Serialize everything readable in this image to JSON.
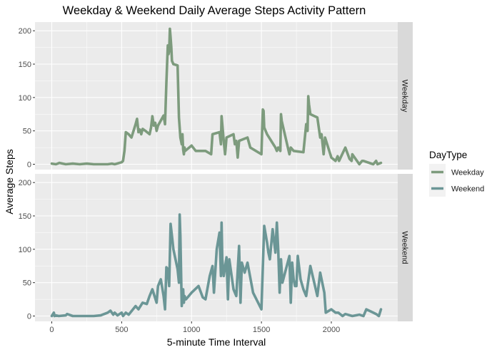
{
  "chart_data": {
    "type": "line",
    "title": "Weekday & Weekend Daily Average Steps Activity Pattern",
    "xlabel": "5-minute Time Interval",
    "ylabel": "Average Steps",
    "xlim": [
      -120,
      2475
    ],
    "ylim": [
      -8,
      213
    ],
    "x_ticks": [
      0,
      500,
      1000,
      1500,
      2000
    ],
    "y_ticks": [
      0,
      50,
      100,
      150,
      200
    ],
    "grid": true,
    "facet": "row",
    "legend": {
      "title": "DayType",
      "position": "right",
      "entries": [
        "Weekday",
        "Weekend"
      ]
    },
    "colors": {
      "Weekday": "#7d9b7d",
      "Weekend": "#6b9696",
      "panel_bg": "#ebebeb",
      "strip_bg": "#d9d9d9",
      "grid": "#ffffff"
    },
    "series": [
      {
        "name": "Weekday",
        "strip_label": "Weekday",
        "x": [
          0,
          30,
          55,
          100,
          150,
          200,
          250,
          300,
          350,
          400,
          430,
          450,
          500,
          510,
          520,
          530,
          550,
          570,
          600,
          610,
          620,
          630,
          640,
          650,
          670,
          700,
          710,
          720,
          730,
          740,
          750,
          760,
          800,
          810,
          820,
          830,
          835,
          840,
          845,
          850,
          855,
          860,
          870,
          900,
          910,
          920,
          930,
          935,
          940,
          945,
          950,
          955,
          1000,
          1030,
          1100,
          1140,
          1150,
          1200,
          1210,
          1215,
          1220,
          1230,
          1240,
          1250,
          1300,
          1310,
          1320,
          1330,
          1340,
          1400,
          1420,
          1500,
          1510,
          1515,
          1520,
          1540,
          1600,
          1610,
          1620,
          1635,
          1640,
          1645,
          1700,
          1710,
          1730,
          1800,
          1820,
          1830,
          1835,
          1840,
          1850,
          1900,
          1920,
          1930,
          1945,
          1955,
          2000,
          2030,
          2045,
          2055,
          2100,
          2130,
          2145,
          2150,
          2200,
          2220,
          2230,
          2300,
          2320,
          2330,
          2355
        ],
        "y": [
          1,
          0,
          2,
          0,
          1,
          0,
          1,
          0,
          0,
          0,
          1,
          0,
          3,
          5,
          20,
          48,
          45,
          40,
          60,
          68,
          48,
          52,
          45,
          53,
          50,
          45,
          55,
          72,
          58,
          62,
          50,
          58,
          73,
          60,
          122,
          178,
          165,
          170,
          203,
          190,
          175,
          155,
          150,
          148,
          70,
          40,
          30,
          45,
          22,
          15,
          25,
          20,
          28,
          20,
          20,
          15,
          45,
          48,
          30,
          72,
          60,
          35,
          15,
          40,
          45,
          30,
          35,
          10,
          35,
          40,
          25,
          15,
          82,
          80,
          55,
          45,
          25,
          20,
          25,
          20,
          75,
          65,
          15,
          25,
          20,
          18,
          60,
          50,
          102,
          90,
          75,
          70,
          40,
          45,
          15,
          40,
          10,
          5,
          12,
          5,
          25,
          8,
          5,
          15,
          0,
          5,
          5,
          0,
          5,
          0,
          2
        ]
      },
      {
        "name": "Weekend",
        "strip_label": "Weekend",
        "x": [
          0,
          15,
          20,
          30,
          50,
          100,
          110,
          150,
          200,
          250,
          300,
          350,
          400,
          420,
          440,
          450,
          470,
          500,
          510,
          530,
          550,
          600,
          620,
          650,
          680,
          700,
          720,
          750,
          760,
          780,
          800,
          810,
          820,
          830,
          840,
          850,
          860,
          870,
          900,
          910,
          915,
          920,
          930,
          940,
          945,
          950,
          960,
          1000,
          1050,
          1080,
          1100,
          1130,
          1150,
          1160,
          1180,
          1200,
          1210,
          1215,
          1220,
          1230,
          1250,
          1260,
          1270,
          1300,
          1320,
          1340,
          1350,
          1360,
          1380,
          1400,
          1440,
          1500,
          1520,
          1540,
          1550,
          1560,
          1580,
          1600,
          1610,
          1620,
          1630,
          1640,
          1650,
          1700,
          1710,
          1720,
          1730,
          1740,
          1750,
          1760,
          1780,
          1800,
          1820,
          1850,
          1900,
          1920,
          1950,
          1960,
          2000,
          2030,
          2050,
          2080,
          2100,
          2150,
          2200,
          2230,
          2250,
          2300,
          2320,
          2340,
          2355
        ],
        "y": [
          0,
          5,
          0,
          1,
          0,
          1,
          3,
          0,
          0,
          0,
          0,
          1,
          5,
          8,
          2,
          5,
          1,
          5,
          0,
          5,
          2,
          15,
          10,
          20,
          18,
          30,
          40,
          20,
          45,
          55,
          30,
          10,
          73,
          70,
          45,
          138,
          120,
          100,
          70,
          50,
          152,
          120,
          15,
          40,
          20,
          30,
          25,
          35,
          45,
          28,
          25,
          60,
          75,
          35,
          100,
          125,
          60,
          140,
          85,
          60,
          88,
          25,
          85,
          40,
          30,
          105,
          20,
          80,
          65,
          80,
          35,
          10,
          135,
          110,
          95,
          85,
          130,
          95,
          140,
          100,
          35,
          85,
          50,
          90,
          20,
          80,
          55,
          45,
          45,
          90,
          55,
          40,
          30,
          75,
          30,
          65,
          35,
          5,
          10,
          5,
          5,
          0,
          3,
          0,
          2,
          0,
          10,
          5,
          3,
          0,
          10
        ]
      }
    ]
  }
}
